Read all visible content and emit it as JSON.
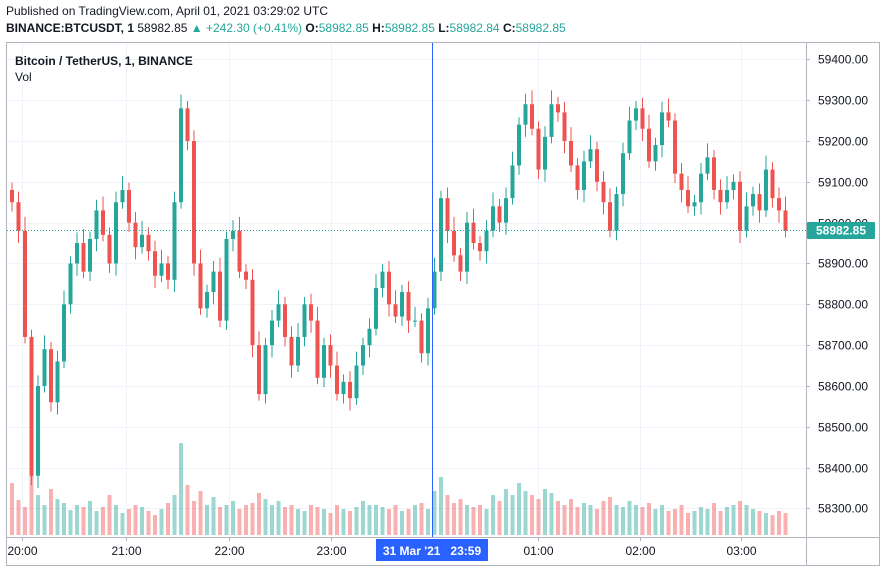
{
  "header": {
    "published": "Published on TradingView.com, April 01, 2021 03:29:02 UTC",
    "symbol": "BINANCE:BTCUSDT, 1",
    "price": "58982.85",
    "change": "▲ +242.30 (+0.41%)",
    "o_label": "O:",
    "o_value": "58982.85",
    "h_label": "H:",
    "h_value": "58982.85",
    "l_label": "L:",
    "l_value": "58982.84",
    "c_label": "C:",
    "c_value": "58982.85"
  },
  "legend": {
    "title": "Bitcoin / TetherUS, 1, BINANCE",
    "vol": "Vol"
  },
  "colors": {
    "up": "#26a69a",
    "down": "#ef5350",
    "crosshair": "#2962ff",
    "last_price": "#26a69a"
  },
  "chart_data": {
    "type": "candlestick",
    "title": "Bitcoin / TetherUS, 1, BINANCE",
    "ylim": [
      58230,
      59440
    ],
    "y_ticks": [
      "59400.00",
      "59300.00",
      "59200.00",
      "59100.00",
      "59000.00",
      "58900.00",
      "58800.00",
      "58700.00",
      "58600.00",
      "58500.00",
      "58400.00",
      "58300.00"
    ],
    "x_ticks": [
      "20:00",
      "21:00",
      "22:00",
      "23:00",
      "01:00",
      "02:00",
      "03:00"
    ],
    "crosshair_x_label": "31 Mar '21   23:59",
    "last_price_label": "58982.85",
    "last_price": 58982.85,
    "close_series": [
      59050,
      58980,
      58720,
      58380,
      58600,
      58690,
      58560,
      58660,
      58800,
      58900,
      58950,
      58880,
      58960,
      59030,
      58970,
      58900,
      59050,
      59080,
      59000,
      58940,
      58970,
      58930,
      58870,
      58900,
      58860,
      59050,
      59280,
      59200,
      58900,
      58790,
      58830,
      58880,
      58760,
      58960,
      58980,
      58880,
      58860,
      58700,
      58580,
      58700,
      58760,
      58800,
      58720,
      58650,
      58720,
      58800,
      58760,
      58620,
      58700,
      58650,
      58580,
      58610,
      58570,
      58650,
      58700,
      58740,
      58840,
      58880,
      58800,
      58770,
      58830,
      58760,
      58760,
      58680,
      58790,
      58880,
      59060,
      58980,
      58920,
      58880,
      59000,
      58950,
      58930,
      58980,
      59040,
      59000,
      59060,
      59140,
      59240,
      59290,
      59230,
      59130,
      59210,
      59290,
      59270,
      59200,
      59140,
      59080,
      59150,
      59180,
      59100,
      59050,
      58980,
      59070,
      59170,
      59250,
      59280,
      59230,
      59150,
      59190,
      59270,
      59250,
      59120,
      59080,
      59040,
      59050,
      59120,
      59160,
      59080,
      59050,
      59080,
      59100,
      58980,
      59040,
      59070,
      59030,
      59130,
      59060,
      59030,
      58980
    ],
    "volume_series": [
      0.52,
      0.35,
      0.28,
      0.75,
      0.4,
      0.3,
      0.46,
      0.36,
      0.32,
      0.25,
      0.3,
      0.28,
      0.34,
      0.24,
      0.28,
      0.4,
      0.3,
      0.22,
      0.26,
      0.3,
      0.28,
      0.24,
      0.2,
      0.26,
      0.32,
      0.4,
      0.92,
      0.5,
      0.34,
      0.44,
      0.3,
      0.38,
      0.28,
      0.3,
      0.34,
      0.26,
      0.3,
      0.32,
      0.42,
      0.36,
      0.3,
      0.34,
      0.28,
      0.3,
      0.26,
      0.24,
      0.3,
      0.28,
      0.26,
      0.22,
      0.3,
      0.26,
      0.24,
      0.28,
      0.34,
      0.3,
      0.3,
      0.28,
      0.26,
      0.3,
      0.24,
      0.26,
      0.3,
      0.32,
      0.26,
      0.44,
      0.58,
      0.4,
      0.32,
      0.36,
      0.3,
      0.28,
      0.3,
      0.26,
      0.4,
      0.34,
      0.46,
      0.4,
      0.52,
      0.44,
      0.4,
      0.36,
      0.46,
      0.42,
      0.34,
      0.3,
      0.36,
      0.28,
      0.32,
      0.3,
      0.26,
      0.34,
      0.38,
      0.3,
      0.28,
      0.34,
      0.3,
      0.28,
      0.32,
      0.26,
      0.3,
      0.24,
      0.26,
      0.3,
      0.22,
      0.24,
      0.28,
      0.26,
      0.32,
      0.24,
      0.28,
      0.3,
      0.34,
      0.3,
      0.26,
      0.24,
      0.22,
      0.2,
      0.24,
      0.22
    ]
  }
}
